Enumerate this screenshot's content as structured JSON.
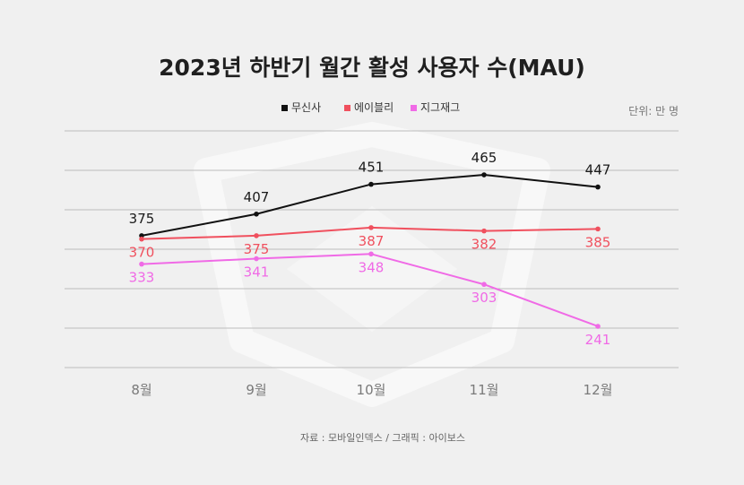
{
  "chart_data": {
    "type": "line",
    "title": "2023년 하반기 월간 활성 사용자 수(MAU)",
    "unit": "단위: 만 명",
    "source": "자료 : 모바일인덱스 / 그래픽 : 아이보스",
    "categories": [
      "8월",
      "9월",
      "10월",
      "11월",
      "12월"
    ],
    "ylim": [
      180,
      530
    ],
    "grid": true,
    "legend_position": "top-center",
    "series": [
      {
        "name": "무신사",
        "color": "#111111",
        "values": [
          375,
          407,
          451,
          465,
          447
        ],
        "labels": [
          "375",
          "407",
          "451",
          "465",
          "447"
        ]
      },
      {
        "name": "에이블리",
        "color": "#f0505e",
        "values": [
          370,
          375,
          387,
          382,
          385
        ],
        "labels": [
          "370",
          "375",
          "387",
          "382",
          "385"
        ]
      },
      {
        "name": "지그재그",
        "color": "#f06ae6",
        "values": [
          333,
          341,
          348,
          303,
          241
        ],
        "labels": [
          "333",
          "341",
          "348",
          "303",
          "241"
        ]
      }
    ]
  }
}
